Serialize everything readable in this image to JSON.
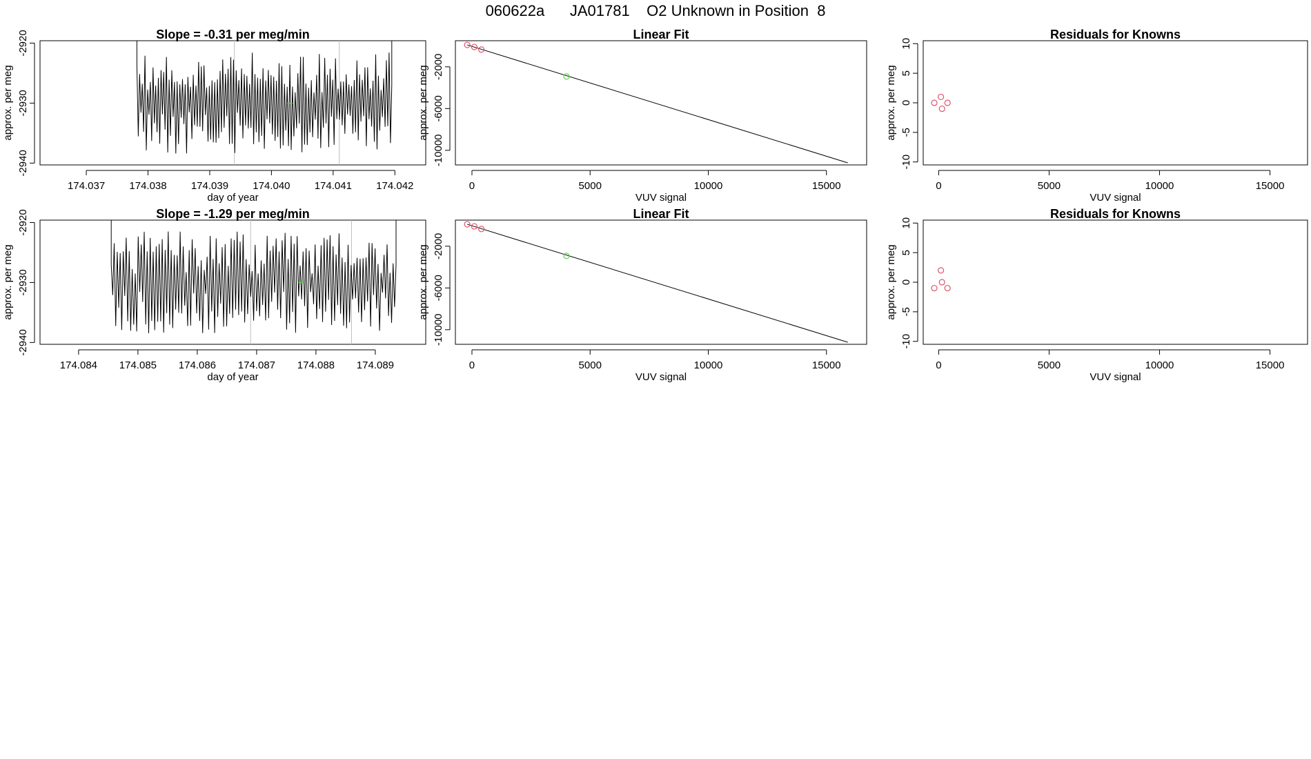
{
  "page": {
    "title": "060622a      JA01781    O2 Unknown in Position  8"
  },
  "colors": {
    "line": "#000000",
    "known": "#DF536B",
    "unknown": "#61D04F",
    "gap": "#BEBEBE"
  },
  "chart_data": [
    {
      "type": "line",
      "title": "Slope =  -0.31  per meg/min",
      "xlabel": "day of year",
      "ylabel": "approx. per meg",
      "xlim": [
        174.03625,
        174.0425
      ],
      "ylim": [
        -2940.3,
        -2919.6
      ],
      "xticks": [
        "174.037",
        "174.038",
        "174.039",
        "174.040",
        "174.041",
        "174.042"
      ],
      "yticks": [
        "-2920",
        "-2930",
        "-2940"
      ],
      "series": [
        {
          "x_start": 174.03782,
          "x_end": 174.04195,
          "gaps": [
            174.0394,
            174.0411
          ],
          "marker_x": 174.0403,
          "marker_y": -2930
        }
      ]
    },
    {
      "type": "scatter",
      "title": "Linear Fit",
      "xlabel": "VUV signal",
      "ylabel": "approx. per meg",
      "xlim": [
        -700,
        16700
      ],
      "ylim": [
        -11400,
        500
      ],
      "xticks": [
        "0",
        "5000",
        "10000",
        "15000"
      ],
      "yticks": [
        "-2000",
        "-6000",
        "-10000"
      ],
      "knowns": [
        [
          -200,
          100
        ],
        [
          100,
          -100
        ],
        [
          400,
          -350
        ]
      ],
      "unknown": [
        [
          4000,
          -2930
        ]
      ],
      "fit_line": [
        [
          -200,
          100
        ],
        [
          15900,
          -11200
        ]
      ]
    },
    {
      "type": "scatter",
      "title": "Residuals for Knowns",
      "xlabel": "VUV signal",
      "ylabel": "approx. per meg",
      "xlim": [
        -700,
        16700
      ],
      "ylim": [
        -10.5,
        10.5
      ],
      "xticks": [
        "0",
        "5000",
        "10000",
        "15000"
      ],
      "yticks": [
        "-10",
        "-5",
        "0",
        "5",
        "10"
      ],
      "points": [
        [
          -200,
          0
        ],
        [
          100,
          1
        ],
        [
          150,
          -1
        ],
        [
          400,
          0
        ]
      ]
    },
    {
      "type": "line",
      "title": "Slope =  -1.29  per meg/min",
      "xlabel": "day of year",
      "ylabel": "approx. per meg",
      "xlim": [
        174.08335,
        174.08985
      ],
      "ylim": [
        -2940.3,
        -2919.6
      ],
      "xticks": [
        "174.084",
        "174.085",
        "174.086",
        "174.087",
        "174.088",
        "174.089"
      ],
      "yticks": [
        "-2920",
        "-2930",
        "-2940"
      ],
      "series": [
        {
          "x_start": 174.08455,
          "x_end": 174.08935,
          "gaps": [
            174.0869,
            174.0886
          ],
          "marker_x": 174.08775,
          "marker_y": -2930
        }
      ]
    },
    {
      "type": "scatter",
      "title": "Linear Fit",
      "xlabel": "VUV signal",
      "ylabel": "approx. per meg",
      "xlim": [
        -700,
        16700
      ],
      "ylim": [
        -11400,
        500
      ],
      "xticks": [
        "0",
        "5000",
        "10000",
        "15000"
      ],
      "yticks": [
        "-2000",
        "-6000",
        "-10000"
      ],
      "knowns": [
        [
          -200,
          100
        ],
        [
          100,
          -100
        ],
        [
          400,
          -350
        ]
      ],
      "unknown": [
        [
          4000,
          -2930
        ]
      ],
      "fit_line": [
        [
          -200,
          100
        ],
        [
          15900,
          -11200
        ]
      ]
    },
    {
      "type": "scatter",
      "title": "Residuals for Knowns",
      "xlabel": "VUV signal",
      "ylabel": "approx. per meg",
      "xlim": [
        -700,
        16700
      ],
      "ylim": [
        -10.5,
        10.5
      ],
      "xticks": [
        "0",
        "5000",
        "10000",
        "15000"
      ],
      "yticks": [
        "-10",
        "-5",
        "0",
        "5",
        "10"
      ],
      "points": [
        [
          -200,
          -1
        ],
        [
          100,
          2
        ],
        [
          150,
          0
        ],
        [
          400,
          -1
        ]
      ]
    }
  ]
}
